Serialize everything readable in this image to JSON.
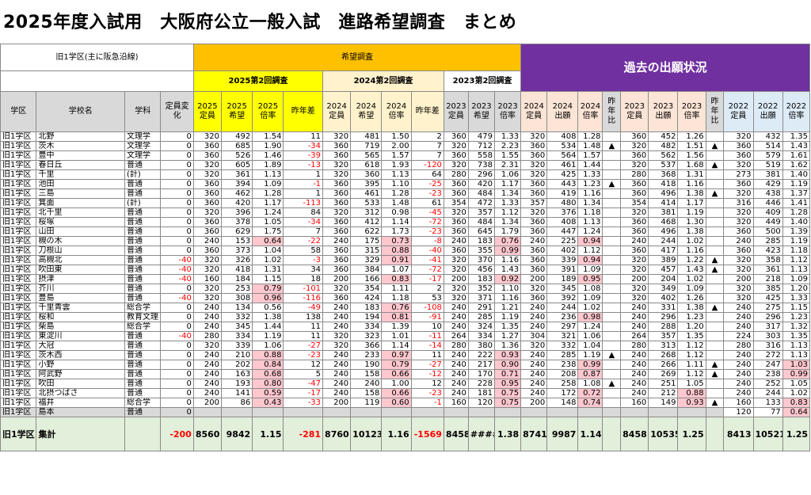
{
  "title": "2025年度入試用　大阪府公立一般入試　進路希望調査　まとめ",
  "district_label": "旧1学区(主に阪急沿線)",
  "group_kibou": "希望調査",
  "group_kako": "過去の出願状況",
  "sub_2025": "2025第2回調査",
  "sub_2024": "2024第2回調査",
  "sub_2023": "2023第2回調査",
  "columns": [
    "学区",
    "学校名",
    "学科",
    "定員変化",
    "2025定員",
    "2025希望",
    "2025倍率",
    "昨年差",
    "2024定員",
    "2024希望",
    "2024倍率",
    "昨年差",
    "2023定員",
    "2023希望",
    "2023倍率",
    "2024定員",
    "2024出願",
    "2024倍率",
    "昨年比",
    "2023定員",
    "2023出願",
    "2023倍率",
    "昨年比",
    "2022定員",
    "2022出願",
    "2022倍率"
  ],
  "rows": [
    [
      "旧1学区",
      "北野",
      "文理学",
      "0",
      "320",
      "492",
      "1.54",
      "11",
      "320",
      "481",
      "1.50",
      "2",
      "360",
      "479",
      "1.33",
      "320",
      "408",
      "1.28",
      "",
      "360",
      "452",
      "1.26",
      "",
      "320",
      "432",
      "1.35"
    ],
    [
      "旧1学区",
      "茨木",
      "文理学",
      "0",
      "360",
      "685",
      "1.90",
      "-34",
      "360",
      "719",
      "2.00",
      "7",
      "320",
      "712",
      "2.23",
      "360",
      "534",
      "1.48",
      "▲",
      "320",
      "482",
      "1.51",
      "▲",
      "360",
      "514",
      "1.43"
    ],
    [
      "旧1学区",
      "豊中",
      "文理学",
      "0",
      "360",
      "526",
      "1.46",
      "-39",
      "360",
      "565",
      "1.57",
      "7",
      "360",
      "558",
      "1.55",
      "360",
      "564",
      "1.57",
      "",
      "360",
      "562",
      "1.56",
      "",
      "360",
      "579",
      "1.61"
    ],
    [
      "旧1学区",
      "春日丘",
      "普通",
      "0",
      "320",
      "605",
      "1.89",
      "-13",
      "320",
      "618",
      "1.93",
      "-120",
      "320",
      "738",
      "2.31",
      "320",
      "461",
      "1.44",
      "",
      "320",
      "537",
      "1.68",
      "▲",
      "320",
      "519",
      "1.62"
    ],
    [
      "旧1学区",
      "千里",
      "(計)",
      "0",
      "320",
      "361",
      "1.13",
      "1",
      "320",
      "360",
      "1.13",
      "64",
      "280",
      "296",
      "1.06",
      "320",
      "425",
      "1.33",
      "",
      "280",
      "368",
      "1.31",
      "",
      "273",
      "381",
      "1.40"
    ],
    [
      "旧1学区",
      "池田",
      "普通",
      "0",
      "360",
      "394",
      "1.09",
      "-1",
      "360",
      "395",
      "1.10",
      "-25",
      "360",
      "420",
      "1.17",
      "360",
      "443",
      "1.23",
      "▲",
      "360",
      "418",
      "1.16",
      "",
      "360",
      "429",
      "1.19"
    ],
    [
      "旧1学区",
      "三島",
      "普通",
      "0",
      "360",
      "462",
      "1.28",
      "1",
      "360",
      "461",
      "1.28",
      "-23",
      "360",
      "484",
      "1.34",
      "360",
      "419",
      "1.16",
      "",
      "360",
      "496",
      "1.38",
      "▲",
      "320",
      "438",
      "1.37"
    ],
    [
      "旧1学区",
      "箕面",
      "(計)",
      "0",
      "360",
      "420",
      "1.17",
      "-113",
      "360",
      "533",
      "1.48",
      "61",
      "354",
      "472",
      "1.33",
      "357",
      "480",
      "1.34",
      "",
      "354",
      "414",
      "1.17",
      "",
      "316",
      "446",
      "1.41"
    ],
    [
      "旧1学区",
      "北千里",
      "普通",
      "0",
      "320",
      "396",
      "1.24",
      "84",
      "320",
      "312",
      "0.98",
      "-45",
      "320",
      "357",
      "1.12",
      "320",
      "376",
      "1.18",
      "",
      "320",
      "381",
      "1.19",
      "",
      "320",
      "409",
      "1.28"
    ],
    [
      "旧1学区",
      "桜塚",
      "普通",
      "0",
      "360",
      "378",
      "1.05",
      "-34",
      "360",
      "412",
      "1.14",
      "-72",
      "360",
      "484",
      "1.34",
      "360",
      "408",
      "1.13",
      "",
      "360",
      "468",
      "1.30",
      "",
      "320",
      "449",
      "1.40"
    ],
    [
      "旧1学区",
      "山田",
      "普通",
      "0",
      "360",
      "629",
      "1.75",
      "7",
      "360",
      "622",
      "1.73",
      "-23",
      "360",
      "645",
      "1.79",
      "360",
      "447",
      "1.24",
      "",
      "360",
      "496",
      "1.38",
      "",
      "360",
      "500",
      "1.39"
    ],
    [
      "旧1学区",
      "槻の木",
      "普通",
      "0",
      "240",
      "153",
      "0.64",
      "-22",
      "240",
      "175",
      "0.73",
      "-8",
      "240",
      "183",
      "0.76",
      "240",
      "225",
      "0.94",
      "",
      "240",
      "244",
      "1.02",
      "",
      "240",
      "285",
      "1.19"
    ],
    [
      "旧1学区",
      "刀根山",
      "普通",
      "0",
      "360",
      "373",
      "1.04",
      "58",
      "360",
      "315",
      "0.88",
      "-40",
      "360",
      "355",
      "0.99",
      "360",
      "402",
      "1.12",
      "",
      "360",
      "417",
      "1.16",
      "",
      "360",
      "423",
      "1.18"
    ],
    [
      "旧1学区",
      "高槻北",
      "普通",
      "-40",
      "320",
      "326",
      "1.02",
      "-3",
      "360",
      "329",
      "0.91",
      "-41",
      "320",
      "370",
      "1.16",
      "360",
      "339",
      "0.94",
      "",
      "320",
      "389",
      "1.22",
      "▲",
      "320",
      "358",
      "1.12"
    ],
    [
      "旧1学区",
      "吹田東",
      "普通",
      "-40",
      "320",
      "418",
      "1.31",
      "34",
      "360",
      "384",
      "1.07",
      "-72",
      "320",
      "456",
      "1.43",
      "360",
      "391",
      "1.09",
      "",
      "320",
      "457",
      "1.43",
      "▲",
      "320",
      "361",
      "1.13"
    ],
    [
      "旧1学区",
      "摂津",
      "普通",
      "-40",
      "160",
      "184",
      "1.15",
      "18",
      "200",
      "166",
      "0.83",
      "-17",
      "200",
      "183",
      "0.92",
      "200",
      "189",
      "0.95",
      "",
      "200",
      "204",
      "1.02",
      "",
      "200",
      "218",
      "1.09"
    ],
    [
      "旧1学区",
      "芥川",
      "普通",
      "0",
      "320",
      "253",
      "0.79",
      "-101",
      "320",
      "354",
      "1.11",
      "2",
      "320",
      "352",
      "1.10",
      "320",
      "345",
      "1.08",
      "",
      "320",
      "349",
      "1.09",
      "",
      "320",
      "385",
      "1.20"
    ],
    [
      "旧1学区",
      "豊島",
      "普通",
      "-40",
      "320",
      "308",
      "0.96",
      "-116",
      "360",
      "424",
      "1.18",
      "53",
      "320",
      "371",
      "1.16",
      "360",
      "392",
      "1.09",
      "",
      "320",
      "402",
      "1.26",
      "",
      "320",
      "425",
      "1.33"
    ],
    [
      "旧1学区",
      "千里青雲",
      "総合学",
      "0",
      "240",
      "134",
      "0.56",
      "-49",
      "240",
      "183",
      "0.76",
      "-108",
      "240",
      "291",
      "1.21",
      "240",
      "244",
      "1.02",
      "",
      "240",
      "331",
      "1.38",
      "▲",
      "240",
      "275",
      "1.15"
    ],
    [
      "旧1学区",
      "桜和",
      "教育文理",
      "0",
      "240",
      "332",
      "1.38",
      "138",
      "240",
      "194",
      "0.81",
      "-91",
      "240",
      "285",
      "1.19",
      "240",
      "236",
      "0.98",
      "",
      "240",
      "296",
      "1.23",
      "",
      "240",
      "296",
      "1.23"
    ],
    [
      "旧1学区",
      "柴島",
      "総合学",
      "0",
      "240",
      "345",
      "1.44",
      "11",
      "240",
      "334",
      "1.39",
      "10",
      "240",
      "324",
      "1.35",
      "240",
      "297",
      "1.24",
      "",
      "240",
      "288",
      "1.20",
      "",
      "240",
      "317",
      "1.32"
    ],
    [
      "旧1学区",
      "東淀川",
      "普通",
      "-40",
      "280",
      "334",
      "1.19",
      "11",
      "320",
      "323",
      "1.01",
      "-11",
      "264",
      "334",
      "1.27",
      "304",
      "321",
      "1.06",
      "",
      "264",
      "357",
      "1.35",
      "",
      "224",
      "303",
      "1.35"
    ],
    [
      "旧1学区",
      "大冠",
      "普通",
      "0",
      "320",
      "339",
      "1.06",
      "-27",
      "320",
      "366",
      "1.14",
      "-14",
      "280",
      "380",
      "1.36",
      "320",
      "332",
      "1.04",
      "",
      "280",
      "313",
      "1.12",
      "",
      "280",
      "316",
      "1.13"
    ],
    [
      "旧1学区",
      "茨木西",
      "普通",
      "0",
      "240",
      "210",
      "0.88",
      "-23",
      "240",
      "233",
      "0.97",
      "11",
      "240",
      "222",
      "0.93",
      "240",
      "285",
      "1.19",
      "▲",
      "240",
      "268",
      "1.12",
      "",
      "240",
      "272",
      "1.13"
    ],
    [
      "旧1学区",
      "小野",
      "普通",
      "0",
      "240",
      "202",
      "0.84",
      "12",
      "240",
      "190",
      "0.79",
      "-27",
      "240",
      "217",
      "0.90",
      "240",
      "238",
      "0.99",
      "",
      "240",
      "266",
      "1.11",
      "▲",
      "240",
      "247",
      "1.03"
    ],
    [
      "旧1学区",
      "阿武野",
      "普通",
      "0",
      "240",
      "163",
      "0.68",
      "5",
      "240",
      "158",
      "0.66",
      "-12",
      "240",
      "170",
      "0.71",
      "240",
      "208",
      "0.87",
      "",
      "240",
      "269",
      "1.12",
      "▲",
      "240",
      "238",
      "0.99"
    ],
    [
      "旧1学区",
      "吹田",
      "普通",
      "0",
      "240",
      "193",
      "0.80",
      "-47",
      "240",
      "240",
      "1.00",
      "12",
      "240",
      "228",
      "0.95",
      "240",
      "258",
      "1.08",
      "▲",
      "240",
      "251",
      "1.05",
      "",
      "240",
      "252",
      "1.05"
    ],
    [
      "旧1学区",
      "北摂つばさ",
      "普通",
      "0",
      "240",
      "141",
      "0.59",
      "-17",
      "240",
      "158",
      "0.66",
      "-23",
      "240",
      "181",
      "0.75",
      "240",
      "172",
      "0.72",
      "",
      "240",
      "212",
      "0.88",
      "",
      "240",
      "244",
      "1.02"
    ],
    [
      "旧1学区",
      "福井",
      "総合学",
      "0",
      "200",
      "86",
      "0.43",
      "-33",
      "200",
      "119",
      "0.60",
      "-1",
      "160",
      "120",
      "0.75",
      "200",
      "148",
      "0.74",
      "",
      "160",
      "149",
      "0.93",
      "▲",
      "160",
      "133",
      "0.83"
    ],
    [
      "旧1学区",
      "島本",
      "普通",
      "0",
      "",
      "",
      "",
      "",
      "",
      "",
      "",
      "",
      "",
      "",
      "",
      "",
      "",
      "",
      "",
      "",
      "",
      "",
      "",
      "120",
      "77",
      "0.64"
    ]
  ],
  "summary": [
    "旧1学区",
    "集計",
    "",
    "-200",
    "8560",
    "9842",
    "1.15",
    "-281",
    "8760",
    "10123",
    "1.16",
    "-1569",
    "8458",
    "#####",
    "1.38",
    "8741",
    "9987",
    "1.14",
    "",
    "8458",
    "10535",
    "1.25",
    "",
    "8413",
    "10521",
    "1.25"
  ],
  "pink_cells": [
    "11:6",
    "11:10",
    "11:14",
    "11:17",
    "12:10",
    "12:14",
    "13:10",
    "13:17",
    "15:10",
    "15:14",
    "15:17",
    "16:6",
    "17:6",
    "18:10",
    "19:10",
    "19:17",
    "23:6",
    "23:10",
    "23:14",
    "24:6",
    "24:10",
    "24:14",
    "24:17",
    "24:25",
    "25:6",
    "25:10",
    "25:14",
    "25:17",
    "25:25",
    "26:6",
    "26:14",
    "27:6",
    "27:10",
    "27:14",
    "27:17",
    "27:21",
    "28:6",
    "28:10",
    "28:14",
    "28:17",
    "28:21",
    "28:25",
    "29:25"
  ]
}
